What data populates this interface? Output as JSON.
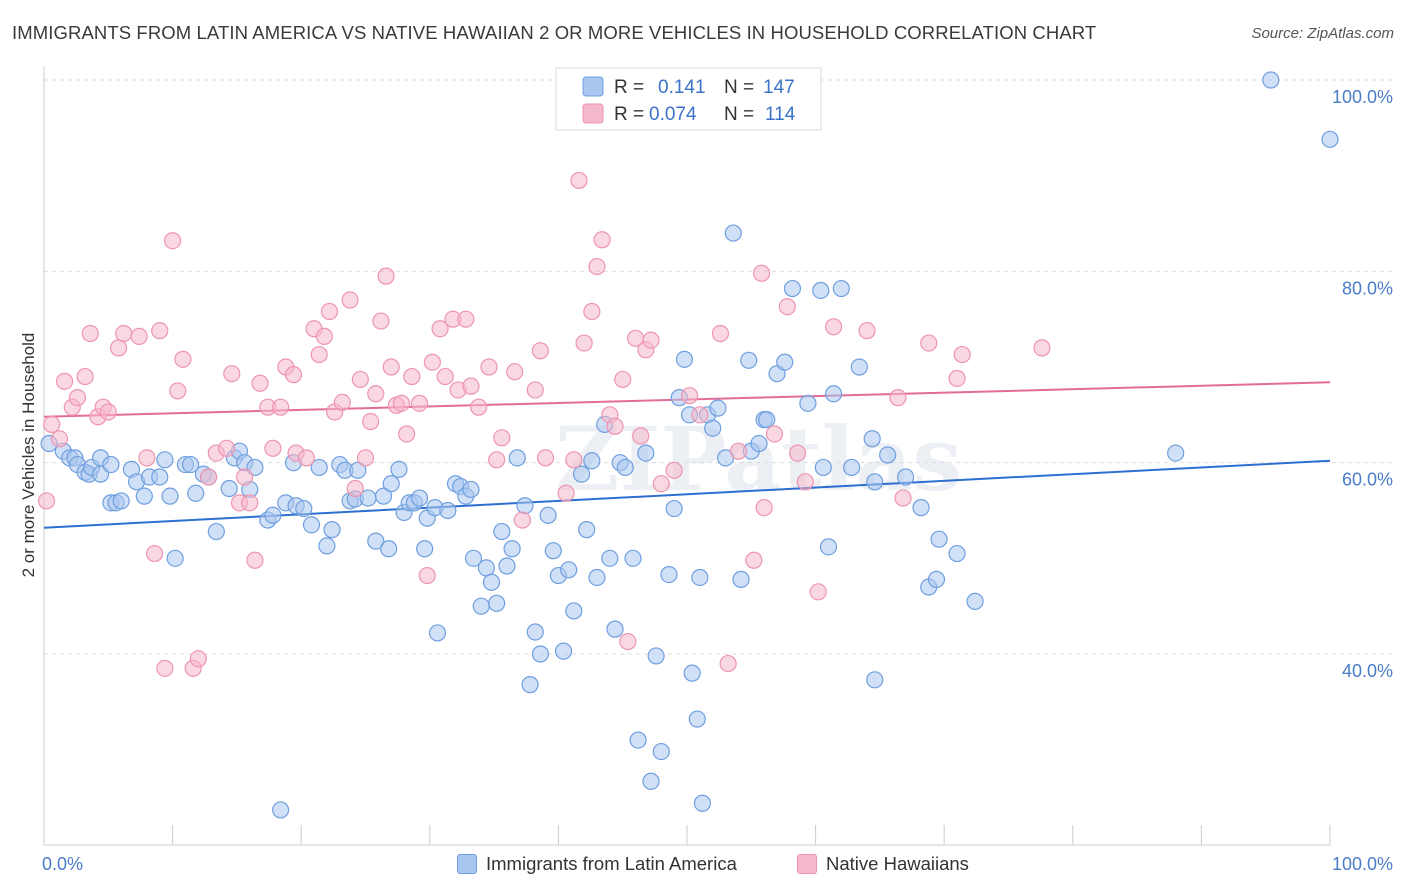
{
  "title": "IMMIGRANTS FROM LATIN AMERICA VS NATIVE HAWAIIAN 2 OR MORE VEHICLES IN HOUSEHOLD CORRELATION CHART",
  "source": "Source: ZipAtlas.com",
  "watermark": "ZIPatlas",
  "colors": {
    "blue_fill": "#a9c6ef",
    "blue_stroke": "#6f9fe0",
    "blue_line": "#2d6fd0",
    "pink_fill": "#f6b8cb",
    "pink_stroke": "#ee94b1",
    "pink_line": "#e46d97",
    "value_text": "#3b73c9",
    "grid": "#dddddd"
  },
  "legend": {
    "rows": [
      {
        "r_label": "R =",
        "r_value": "0.141",
        "n_label": "N =",
        "n_value": "147"
      },
      {
        "r_label": "R =",
        "r_value": "0.074",
        "n_label": "N =",
        "n_value": "114"
      }
    ]
  },
  "bottom_legend": [
    "Immigrants from Latin America",
    "Native Hawaiians"
  ],
  "chart_data": {
    "type": "scatter",
    "xlabel": "",
    "ylabel": "2 or more Vehicles in Household",
    "xlim": [
      0,
      100
    ],
    "ylim": [
      20,
      100
    ],
    "x_tick_labels": [
      "0.0%",
      "100.0%"
    ],
    "y_ticks": [
      40,
      60,
      80,
      100
    ],
    "y_tick_labels": [
      "40.0%",
      "60.0%",
      "80.0%",
      "100.0%"
    ],
    "grid": true,
    "legend_position": "top-center",
    "series": [
      {
        "name": "Immigrants from Latin America",
        "color": "#6f9fe0",
        "trend": [
          [
            0,
            53.2
          ],
          [
            100,
            60.2
          ]
        ],
        "points": [
          [
            0.4,
            62
          ],
          [
            1.5,
            61.2
          ],
          [
            2,
            60.5
          ],
          [
            2.4,
            60.5
          ],
          [
            2.6,
            59.8
          ],
          [
            3.2,
            59
          ],
          [
            3.5,
            58.8
          ],
          [
            3.7,
            59.5
          ],
          [
            4.4,
            58.8
          ],
          [
            4.4,
            60.5
          ],
          [
            5.2,
            59.8
          ],
          [
            5.2,
            55.8
          ],
          [
            5.6,
            55.8
          ],
          [
            6,
            56
          ],
          [
            6.8,
            59.3
          ],
          [
            7.2,
            58
          ],
          [
            7.8,
            56.5
          ],
          [
            8.2,
            58.5
          ],
          [
            9,
            58.5
          ],
          [
            9.4,
            60.3
          ],
          [
            9.8,
            56.5
          ],
          [
            10.2,
            50
          ],
          [
            11,
            59.8
          ],
          [
            11.4,
            59.8
          ],
          [
            11.8,
            56.8
          ],
          [
            12.4,
            58.8
          ],
          [
            12.8,
            58.5
          ],
          [
            13.4,
            52.8
          ],
          [
            14.4,
            57.3
          ],
          [
            14.8,
            60.5
          ],
          [
            15.2,
            61.2
          ],
          [
            15.6,
            60
          ],
          [
            16,
            57.2
          ],
          [
            16.4,
            59.5
          ],
          [
            17.4,
            54
          ],
          [
            17.8,
            54.5
          ],
          [
            18.4,
            23.7
          ],
          [
            18.8,
            55.8
          ],
          [
            19.4,
            60
          ],
          [
            19.6,
            55.5
          ],
          [
            20.2,
            55.2
          ],
          [
            20.8,
            53.5
          ],
          [
            21.4,
            59.5
          ],
          [
            22,
            51.3
          ],
          [
            22.4,
            53
          ],
          [
            23,
            59.8
          ],
          [
            23.4,
            59.2
          ],
          [
            23.8,
            56
          ],
          [
            24.2,
            56.2
          ],
          [
            24.4,
            59.2
          ],
          [
            25.2,
            56.3
          ],
          [
            25.8,
            51.8
          ],
          [
            26.4,
            56.5
          ],
          [
            26.8,
            51
          ],
          [
            27,
            57.8
          ],
          [
            27.6,
            59.3
          ],
          [
            28,
            54.8
          ],
          [
            28.4,
            55.8
          ],
          [
            28.8,
            55.8
          ],
          [
            29.2,
            56.3
          ],
          [
            29.6,
            51
          ],
          [
            29.8,
            54.2
          ],
          [
            30.4,
            55.3
          ],
          [
            30.6,
            42.2
          ],
          [
            31.4,
            55
          ],
          [
            32,
            57.8
          ],
          [
            32.4,
            57.5
          ],
          [
            32.8,
            56.5
          ],
          [
            33.2,
            57.2
          ],
          [
            33.4,
            50
          ],
          [
            34,
            45
          ],
          [
            34.4,
            49
          ],
          [
            34.8,
            47.5
          ],
          [
            35.2,
            45.3
          ],
          [
            35.6,
            52.8
          ],
          [
            36,
            49.2
          ],
          [
            36.4,
            51
          ],
          [
            36.8,
            60.5
          ],
          [
            37.4,
            55.5
          ],
          [
            37.8,
            36.8
          ],
          [
            38.2,
            42.3
          ],
          [
            38.6,
            40
          ],
          [
            39.2,
            54.5
          ],
          [
            39.6,
            50.8
          ],
          [
            40,
            48.2
          ],
          [
            40.4,
            40.3
          ],
          [
            40.8,
            48.8
          ],
          [
            41.2,
            44.5
          ],
          [
            41.8,
            58.8
          ],
          [
            42.2,
            53
          ],
          [
            42.6,
            60.2
          ],
          [
            43,
            48
          ],
          [
            43.6,
            64
          ],
          [
            44,
            50
          ],
          [
            44.4,
            42.6
          ],
          [
            44.8,
            60
          ],
          [
            45.2,
            59.5
          ],
          [
            45.8,
            50
          ],
          [
            46.2,
            31
          ],
          [
            46.8,
            61
          ],
          [
            47.2,
            26.7
          ],
          [
            47.6,
            39.8
          ],
          [
            48,
            29.8
          ],
          [
            48.6,
            48.3
          ],
          [
            49,
            55.2
          ],
          [
            49.4,
            66.8
          ],
          [
            49.8,
            70.8
          ],
          [
            50.2,
            65
          ],
          [
            50.4,
            38
          ],
          [
            50.8,
            33.2
          ],
          [
            51,
            48
          ],
          [
            51.2,
            24.4
          ],
          [
            51.6,
            65
          ],
          [
            52,
            63.6
          ],
          [
            52.4,
            65.7
          ],
          [
            53,
            60.5
          ],
          [
            53.6,
            84
          ],
          [
            54.2,
            47.8
          ],
          [
            54.8,
            70.7
          ],
          [
            55,
            61.2
          ],
          [
            55.6,
            62
          ],
          [
            56,
            64.5
          ],
          [
            56.2,
            64.5
          ],
          [
            57,
            69.3
          ],
          [
            57.6,
            70.5
          ],
          [
            58.2,
            78.2
          ],
          [
            59.4,
            66.2
          ],
          [
            60.4,
            78
          ],
          [
            60.6,
            59.5
          ],
          [
            61,
            51.2
          ],
          [
            61.4,
            67.2
          ],
          [
            62,
            78.2
          ],
          [
            62.8,
            59.5
          ],
          [
            63.4,
            70
          ],
          [
            64.4,
            62.5
          ],
          [
            64.6,
            37.3
          ],
          [
            64.6,
            58
          ],
          [
            65.6,
            60.8
          ],
          [
            67,
            58.5
          ],
          [
            68.2,
            55.3
          ],
          [
            68.8,
            47
          ],
          [
            69.4,
            47.8
          ],
          [
            69.6,
            52
          ],
          [
            71,
            50.5
          ],
          [
            72.4,
            45.5
          ],
          [
            88,
            61
          ],
          [
            95.4,
            100
          ],
          [
            100,
            93.8
          ]
        ]
      },
      {
        "name": "Native Hawaiians",
        "color": "#ee94b1",
        "trend": [
          [
            0,
            64.8
          ],
          [
            100,
            68.4
          ]
        ],
        "points": [
          [
            0.2,
            56
          ],
          [
            0.6,
            64
          ],
          [
            1.2,
            62.5
          ],
          [
            1.6,
            68.5
          ],
          [
            2.2,
            65.8
          ],
          [
            2.6,
            66.8
          ],
          [
            3.2,
            69
          ],
          [
            3.6,
            73.5
          ],
          [
            4.2,
            64.8
          ],
          [
            4.6,
            65.8
          ],
          [
            5,
            65.3
          ],
          [
            5.8,
            72
          ],
          [
            6.2,
            73.5
          ],
          [
            7.4,
            73.2
          ],
          [
            8,
            60.5
          ],
          [
            8.6,
            50.5
          ],
          [
            9,
            73.8
          ],
          [
            9.4,
            38.5
          ],
          [
            10,
            83.2
          ],
          [
            10.4,
            67.5
          ],
          [
            10.8,
            70.8
          ],
          [
            11.6,
            38.5
          ],
          [
            12,
            39.5
          ],
          [
            12.8,
            58.5
          ],
          [
            13.4,
            61
          ],
          [
            14.2,
            61.5
          ],
          [
            14.6,
            69.3
          ],
          [
            15.2,
            55.8
          ],
          [
            15.6,
            58.5
          ],
          [
            16,
            55.8
          ],
          [
            16.4,
            49.8
          ],
          [
            16.8,
            68.3
          ],
          [
            17.4,
            65.8
          ],
          [
            17.8,
            61.5
          ],
          [
            18.4,
            65.8
          ],
          [
            18.8,
            70
          ],
          [
            19.4,
            69.2
          ],
          [
            19.6,
            61
          ],
          [
            20.4,
            60.5
          ],
          [
            21,
            74
          ],
          [
            21.4,
            71.3
          ],
          [
            21.8,
            73.2
          ],
          [
            22.2,
            75.8
          ],
          [
            22.6,
            65.3
          ],
          [
            23.2,
            66.3
          ],
          [
            23.8,
            77
          ],
          [
            24.2,
            57.3
          ],
          [
            24.6,
            68.7
          ],
          [
            25,
            60.5
          ],
          [
            25.4,
            64.3
          ],
          [
            25.8,
            67.2
          ],
          [
            26.2,
            74.8
          ],
          [
            26.6,
            79.5
          ],
          [
            27,
            70
          ],
          [
            27.4,
            66
          ],
          [
            27.8,
            66.2
          ],
          [
            28.2,
            63
          ],
          [
            28.6,
            69
          ],
          [
            29.2,
            66.2
          ],
          [
            29.8,
            48.2
          ],
          [
            30.2,
            70.5
          ],
          [
            30.8,
            74
          ],
          [
            31.2,
            69
          ],
          [
            31.8,
            75
          ],
          [
            32.2,
            67.6
          ],
          [
            32.8,
            75
          ],
          [
            33.2,
            68
          ],
          [
            33.8,
            65.8
          ],
          [
            34.6,
            70
          ],
          [
            35.2,
            60.3
          ],
          [
            35.6,
            62.6
          ],
          [
            36.6,
            69.5
          ],
          [
            37.2,
            54
          ],
          [
            38.2,
            67.6
          ],
          [
            38.6,
            71.7
          ],
          [
            39,
            60.5
          ],
          [
            40.6,
            56.8
          ],
          [
            41.2,
            60.3
          ],
          [
            41.6,
            89.5
          ],
          [
            42,
            72.5
          ],
          [
            42.6,
            75.8
          ],
          [
            43,
            80.5
          ],
          [
            43.4,
            83.3
          ],
          [
            44,
            65
          ],
          [
            44.4,
            63.8
          ],
          [
            45,
            68.7
          ],
          [
            45.4,
            41.3
          ],
          [
            46,
            73
          ],
          [
            46.4,
            62.8
          ],
          [
            46.8,
            71.8
          ],
          [
            47.2,
            72.8
          ],
          [
            48,
            57.8
          ],
          [
            49,
            59.2
          ],
          [
            50.2,
            67
          ],
          [
            51,
            65
          ],
          [
            52.6,
            73.5
          ],
          [
            53.2,
            39
          ],
          [
            54,
            61.2
          ],
          [
            55.2,
            49.8
          ],
          [
            55.8,
            79.8
          ],
          [
            56,
            55.3
          ],
          [
            56.8,
            63
          ],
          [
            57.8,
            76.3
          ],
          [
            58,
            97
          ],
          [
            58.6,
            61
          ],
          [
            59.2,
            58
          ],
          [
            60.2,
            46.5
          ],
          [
            61.4,
            74.2
          ],
          [
            64,
            73.8
          ],
          [
            66.4,
            66.8
          ],
          [
            66.8,
            56.3
          ],
          [
            68.8,
            72.5
          ],
          [
            71,
            68.8
          ],
          [
            71.4,
            71.3
          ],
          [
            77.6,
            72
          ]
        ]
      }
    ]
  }
}
